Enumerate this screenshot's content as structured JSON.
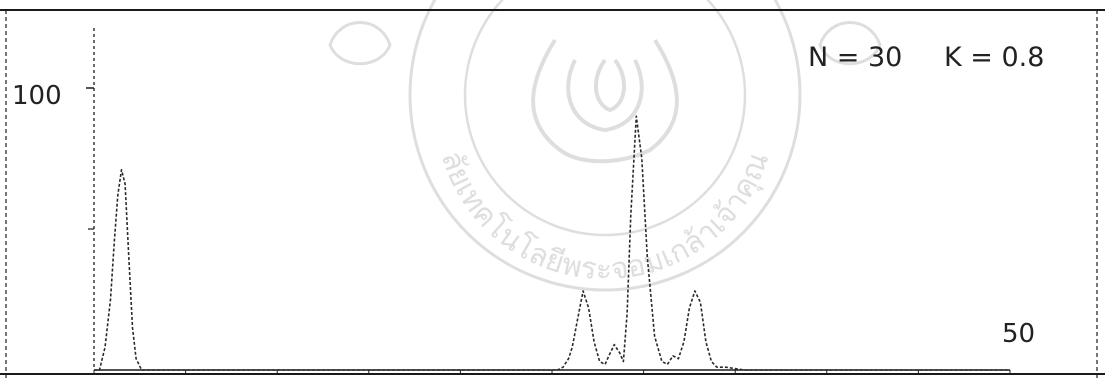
{
  "chart_data": {
    "type": "line",
    "title": "",
    "annotation_n": "N = 30",
    "annotation_k": "K = 0.8",
    "y_tick_label": "100",
    "x_tick_label": "50",
    "xlim": [
      0,
      50
    ],
    "ylim": [
      0,
      100
    ],
    "grid": false,
    "series": [
      {
        "x": [
          0,
          0.3,
          0.6,
          0.9,
          1.1,
          1.3,
          1.5,
          1.7,
          1.9,
          2.1,
          2.3,
          2.6,
          25.0,
          25.3,
          25.6,
          25.9,
          26.1,
          26.4,
          26.7,
          27.0,
          27.3,
          27.6,
          27.9,
          28.1,
          28.4,
          28.7,
          28.9,
          29.1,
          29.3,
          29.6,
          29.9,
          30.2,
          30.6,
          31.0,
          31.3,
          31.6,
          31.9,
          32.2,
          32.5,
          32.8,
          33.1,
          33.4,
          33.7,
          34.0,
          34.5,
          35.0,
          35.5,
          36.0,
          40.0,
          45.0,
          50.0
        ],
        "y": [
          0,
          0,
          8,
          25,
          45,
          62,
          71,
          66,
          40,
          15,
          4,
          0,
          0,
          0,
          1,
          4,
          8,
          18,
          28,
          22,
          10,
          3,
          2,
          5,
          9,
          6,
          3,
          20,
          55,
          90,
          75,
          40,
          12,
          3,
          2,
          5,
          4,
          10,
          22,
          28,
          24,
          10,
          3,
          1,
          1,
          0.5,
          0,
          0,
          0,
          0,
          0
        ]
      }
    ]
  },
  "watermark": {
    "text": "วิทยาลัยเทคโนโลยีพระจอมเกล้าเจ้าคุณทหาร"
  },
  "colors": {
    "trace": "#2a2a2a",
    "frame": "#1a1a1a",
    "watermark": "#c9c9c9"
  }
}
